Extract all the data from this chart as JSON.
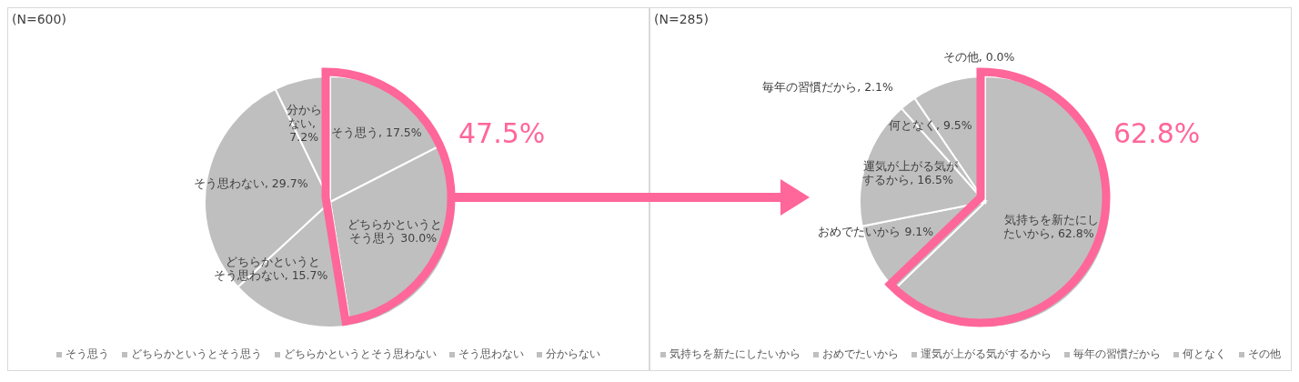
{
  "chart_data": [
    {
      "type": "pie",
      "categories": [
        "そう思う",
        "どちらかというとそう思う",
        "どちらかというとそう思わない",
        "そう思わない",
        "分からない"
      ],
      "values": [
        17.5,
        30.0,
        15.7,
        29.7,
        7.2
      ],
      "colors": [
        "#bfbfbf",
        "#bfbfbf",
        "#bfbfbf",
        "#bfbfbf",
        "#bfbfbf"
      ],
      "value_labels": [
        "そう思う, 17.5%",
        "どちらかというとそう思う 30.0%",
        "どちらかというとそう思わない, 15.7%",
        "そう思わない, 29.7%",
        "分からない, 7.2%"
      ],
      "annotations": [
        "(N=600)",
        "47.5%"
      ],
      "legend": "bottom"
    },
    {
      "type": "pie",
      "categories": [
        "気持ちを新たにしたいから",
        "おめでたいから",
        "運気が上がる気がするから",
        "毎年の習慣だから",
        "何となく",
        "その他"
      ],
      "values": [
        62.8,
        9.1,
        16.5,
        2.1,
        9.5,
        0.0
      ],
      "colors": [
        "#bfbfbf",
        "#bfbfbf",
        "#bfbfbf",
        "#bfbfbf",
        "#bfbfbf",
        "#bfbfbf"
      ],
      "value_labels": [
        "気持ちを新たにしたいから, 62.8%",
        "おめでたいから 9.1%",
        "運気が上がる気がするから, 16.5%",
        "毎年の習慣だから, 2.1%",
        "何となく, 9.5%",
        "その他, 0.0%"
      ],
      "annotations": [
        "(N=285)",
        "62.8%"
      ],
      "legend": "bottom"
    }
  ]
}
